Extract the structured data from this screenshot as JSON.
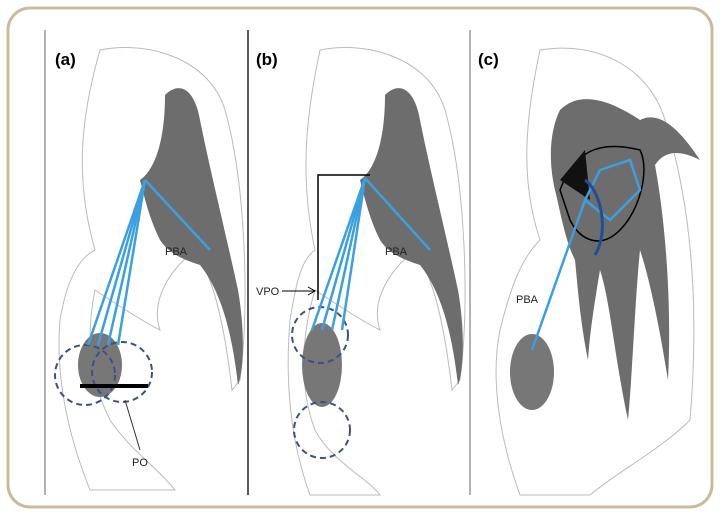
{
  "panels": [
    {
      "label": "(a)",
      "annotations": [
        "PBA",
        "PO"
      ]
    },
    {
      "label": "(b)",
      "annotations": [
        "PBA",
        "VPO"
      ]
    },
    {
      "label": "(c)",
      "annotations": [
        "PBA"
      ]
    }
  ]
}
